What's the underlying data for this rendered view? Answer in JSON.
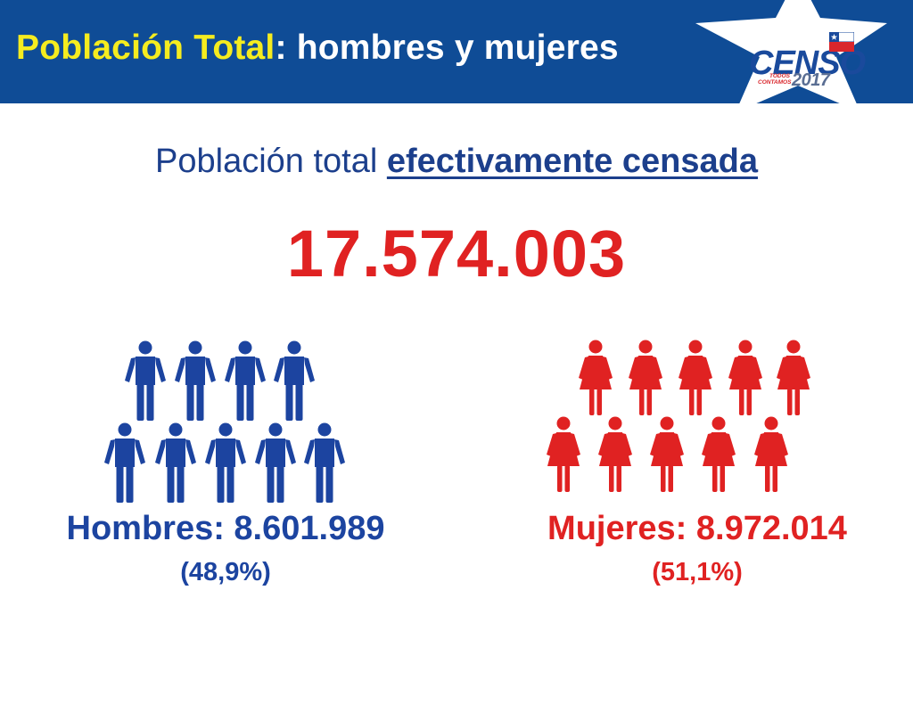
{
  "header": {
    "title_highlight": "Población Total",
    "title_rest": ": hombres y mujeres"
  },
  "logo": {
    "name": "CENSO",
    "tagline_line1": "TODOS",
    "tagline_line2": "CONTAMOS",
    "year": "2017"
  },
  "subtitle": {
    "prefix": "Población total ",
    "emphasis": "efectivamente censada"
  },
  "total": "17.574.003",
  "men": {
    "label": "Hombres: 8.601.989",
    "percent": "(48,9%)",
    "icon": "man-icon",
    "color": "#1c44a0",
    "count": 9
  },
  "women": {
    "label": "Mujeres: 8.972.014",
    "percent": "(51,1%)",
    "icon": "woman-icon",
    "color": "#e02222",
    "count": 10
  },
  "colors": {
    "header_bg": "#0f4c96",
    "header_highlight": "#f5ec1f",
    "subtitle": "#1c3f8c",
    "total": "#e02222"
  }
}
